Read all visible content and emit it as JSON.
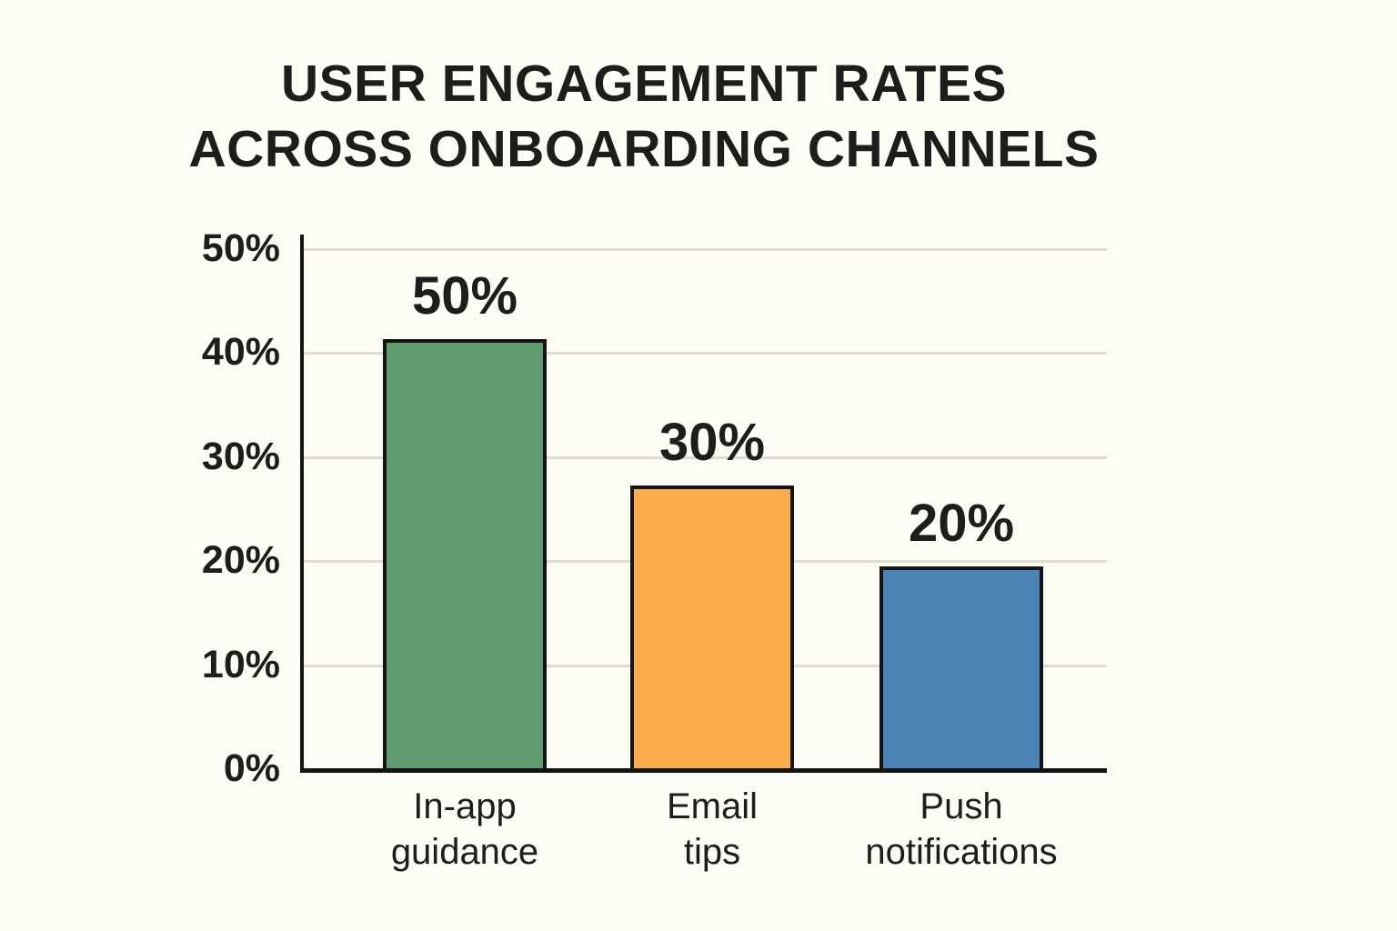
{
  "title": {
    "line1": "USER ENGAGEMENT RATES",
    "line2": "ACROSS ONBOARDING CHANNELS"
  },
  "chart_data": {
    "type": "bar",
    "title": "USER ENGAGEMENT RATES ACROSS ONBOARDING CHANNELS",
    "categories": [
      "In-app guidance",
      "Email tips",
      "Push notifications"
    ],
    "values": [
      50,
      30,
      20
    ],
    "value_labels": [
      "50%",
      "30%",
      "20%"
    ],
    "unit": "%",
    "xlabel": "",
    "ylabel": "",
    "ylim": [
      0,
      50
    ],
    "grid": "horizontal-light",
    "legend_position": "none",
    "yticks": [
      {
        "value": 50,
        "label": "50%"
      },
      {
        "value": 40,
        "label": "40%"
      },
      {
        "value": 30,
        "label": "30%"
      },
      {
        "value": 20,
        "label": "20%"
      },
      {
        "value": 10,
        "label": "10%"
      },
      {
        "value": 0,
        "label": "0%"
      }
    ],
    "bars": [
      {
        "category": "In-app guidance",
        "category_line1": "In-app",
        "category_line2": "guidance",
        "value": 50,
        "value_label": "50%",
        "drawn_percent": 41.3,
        "color": "#609c6e"
      },
      {
        "category": "Email tips",
        "category_line1": "Email",
        "category_line2": "tips",
        "value": 30,
        "value_label": "30%",
        "drawn_percent": 27.2,
        "color": "#fbad4e"
      },
      {
        "category": "Push notifications",
        "category_line1": "Push",
        "category_line2": "notifications",
        "value": 20,
        "value_label": "20%",
        "drawn_percent": 19.4,
        "color": "#4d84b6"
      }
    ],
    "colors": {
      "background": "#fcfbf4",
      "text": "#1d1d1b",
      "axis": "#141414",
      "gridline": "#dedcd5",
      "bar_outline": "#141414",
      "bar_green": "#609c6e",
      "bar_orange": "#fbad4e",
      "bar_blue": "#4d84b6"
    }
  }
}
